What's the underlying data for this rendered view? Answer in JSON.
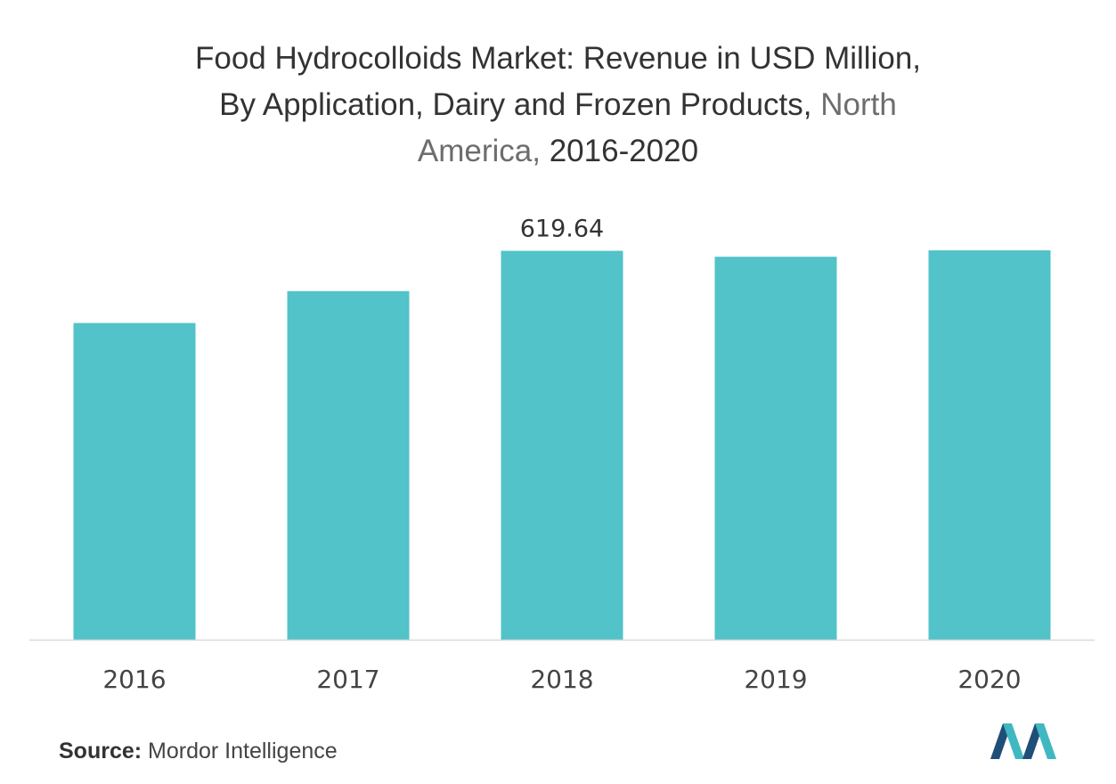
{
  "title": {
    "line1": "Food Hydrocolloids Market: Revenue in USD Million,",
    "line2_dark": "By Application, Dairy and Frozen Products, ",
    "line2_light": "North",
    "line3_light": "America, ",
    "line3_dark": "2016-2020"
  },
  "source": {
    "label": "Source:",
    "text": " Mordor Intelligence"
  },
  "colors": {
    "bar": "#52c3c8",
    "axis": "#d9d9d9",
    "title_dark": "#333333",
    "title_light": "#6d6d6d",
    "logo_dark": "#1f4e79",
    "logo_teal": "#3fb8c2"
  },
  "chart_data": {
    "type": "bar",
    "categories": [
      "2016",
      "2017",
      "2018",
      "2019",
      "2020"
    ],
    "values": [
      504.6,
      555.4,
      619.64,
      610.2,
      620.4
    ],
    "data_labels": [
      "",
      "",
      "619.64",
      "",
      ""
    ],
    "title": "Food Hydrocolloids Market: Revenue in USD Million, By Application, Dairy and Frozen Products, North America, 2016-2020",
    "xlabel": "",
    "ylabel": "",
    "ylim": [
      0,
      620.4
    ],
    "grid": false,
    "legend": "none"
  }
}
